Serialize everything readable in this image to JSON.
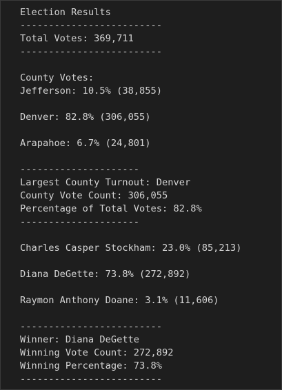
{
  "blocks": [
    [
      "Election Results",
      "-------------------------",
      "Total Votes: 369,711",
      "-------------------------"
    ],
    [
      "County Votes:",
      "Jefferson: 10.5% (38,855)"
    ],
    [
      "Denver: 82.8% (306,055)"
    ],
    [
      "Arapahoe: 6.7% (24,801)"
    ],
    [
      "---------------------",
      "Largest County Turnout: Denver",
      "County Vote Count: 306,055",
      "Percentage of Total Votes: 82.8%",
      "---------------------"
    ],
    [
      "Charles Casper Stockham: 23.0% (85,213)"
    ],
    [
      "Diana DeGette: 73.8% (272,892)"
    ],
    [
      "Raymon Anthony Doane: 3.1% (11,606)"
    ],
    [
      "-------------------------",
      "Winner: Diana DeGette",
      "Winning Vote Count: 272,892",
      "Winning Percentage: 73.8%",
      "-------------------------"
    ]
  ]
}
